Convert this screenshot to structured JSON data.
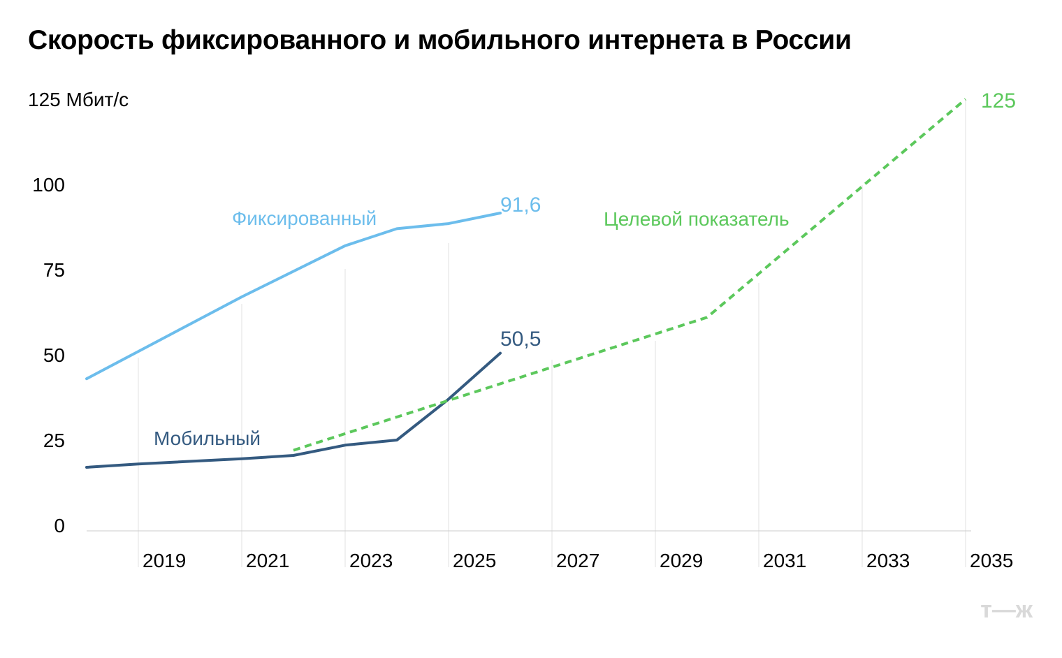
{
  "title": "Скорость фиксированного и мобильного интернета в России",
  "logo": "т—ж",
  "chart_data": {
    "type": "line",
    "title": "Скорость фиксированного и мобильного интернета в России",
    "ylabel": "Мбит/с",
    "ylim": [
      0,
      125
    ],
    "xlim": [
      2018,
      2035
    ],
    "yticks": [
      {
        "value": 0,
        "label": "0"
      },
      {
        "value": 25,
        "label": "25"
      },
      {
        "value": 50,
        "label": "50"
      },
      {
        "value": 75,
        "label": "75"
      },
      {
        "value": 100,
        "label": "100"
      },
      {
        "value": 125,
        "label": "125 Мбит/с"
      }
    ],
    "xticks": [
      2019,
      2021,
      2023,
      2025,
      2027,
      2029,
      2031,
      2033,
      2035
    ],
    "grid": "vertical",
    "series": [
      {
        "name": "Фиксированный",
        "color": "#6cbdec",
        "style": "solid",
        "end_label": "91,6",
        "points": [
          {
            "x": 2018,
            "y": 43
          },
          {
            "x": 2019,
            "y": 51
          },
          {
            "x": 2021,
            "y": 67
          },
          {
            "x": 2023,
            "y": 82
          },
          {
            "x": 2024,
            "y": 87
          },
          {
            "x": 2025,
            "y": 88.5
          },
          {
            "x": 2026,
            "y": 91.6
          }
        ]
      },
      {
        "name": "Мобильный",
        "color": "#345a80",
        "style": "solid",
        "end_label": "50,5",
        "points": [
          {
            "x": 2018,
            "y": 17
          },
          {
            "x": 2019,
            "y": 18
          },
          {
            "x": 2021,
            "y": 19.5
          },
          {
            "x": 2022,
            "y": 20.5
          },
          {
            "x": 2023,
            "y": 23.5
          },
          {
            "x": 2024,
            "y": 25
          },
          {
            "x": 2025,
            "y": 37
          },
          {
            "x": 2026,
            "y": 50.5
          }
        ]
      },
      {
        "name": "Целевой показатель",
        "color": "#5cc85c",
        "style": "dashed",
        "end_label": "125",
        "points": [
          {
            "x": 2022,
            "y": 22
          },
          {
            "x": 2030,
            "y": 61
          },
          {
            "x": 2035,
            "y": 125
          }
        ]
      }
    ]
  }
}
